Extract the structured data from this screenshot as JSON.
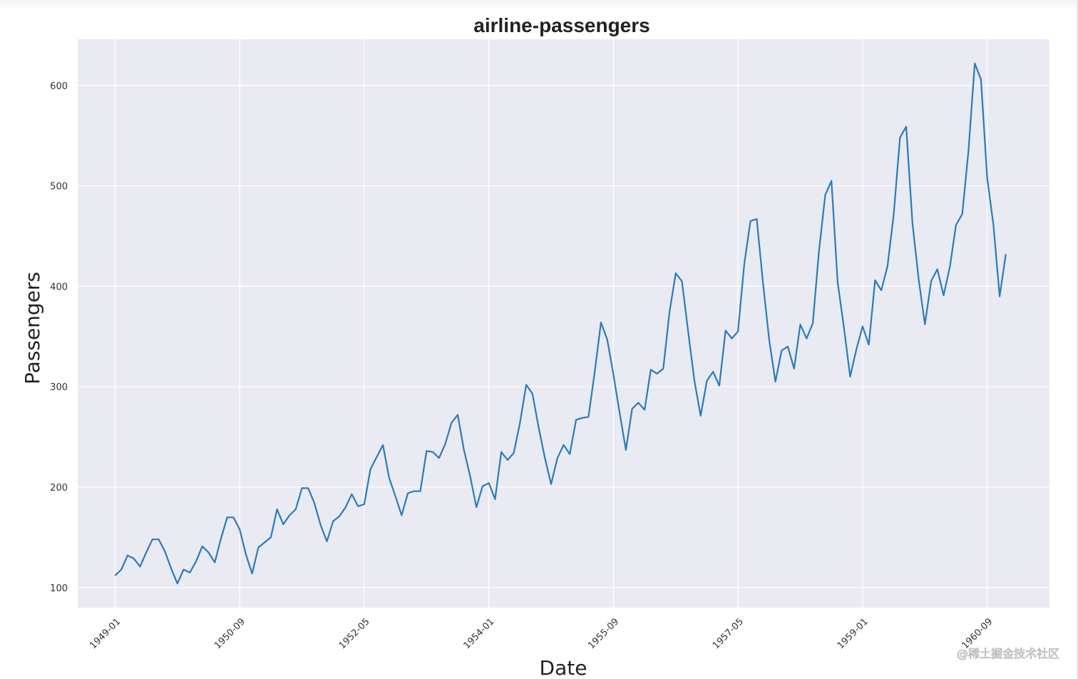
{
  "chart_data": {
    "type": "line",
    "title": "airline-passengers",
    "xlabel": "Date",
    "ylabel": "Passengers",
    "x_ticks": [
      "1949-01",
      "1950-09",
      "1952-05",
      "1954-01",
      "1955-09",
      "1957-05",
      "1959-01",
      "1960-09"
    ],
    "y_ticks": [
      100,
      200,
      300,
      400,
      500,
      600
    ],
    "xlim": [
      "1948-07",
      "1961-07"
    ],
    "ylim": [
      80,
      646
    ],
    "grid": true,
    "line_color": "#2b7bb9",
    "background_color": "#eaeaf2",
    "series": [
      {
        "x_start": "1949-01",
        "frequency": "monthly",
        "values": [
          112,
          118,
          132,
          129,
          121,
          135,
          148,
          148,
          136,
          119,
          104,
          118,
          115,
          126,
          141,
          135,
          125,
          149,
          170,
          170,
          158,
          133,
          114,
          140,
          145,
          150,
          178,
          163,
          172,
          178,
          199,
          199,
          184,
          162,
          146,
          166,
          171,
          180,
          193,
          181,
          183,
          218,
          230,
          242,
          209,
          191,
          172,
          194,
          196,
          196,
          236,
          235,
          229,
          243,
          264,
          272,
          237,
          211,
          180,
          201,
          204,
          188,
          235,
          227,
          234,
          264,
          302,
          293,
          259,
          229,
          203,
          229,
          242,
          233,
          267,
          269,
          270,
          315,
          364,
          347,
          312,
          274,
          237,
          278,
          284,
          277,
          317,
          313,
          318,
          374,
          413,
          405,
          355,
          306,
          271,
          306,
          315,
          301,
          356,
          348,
          355,
          422,
          465,
          467,
          404,
          347,
          305,
          336,
          340,
          318,
          362,
          348,
          363,
          435,
          491,
          505,
          404,
          359,
          310,
          337,
          360,
          342,
          406,
          396,
          420,
          472,
          548,
          559,
          463,
          407,
          362,
          405,
          417,
          391,
          419,
          461,
          472,
          535,
          622,
          606,
          508,
          461,
          390,
          432
        ]
      }
    ]
  },
  "watermark": "@稀土掘金技术社区"
}
